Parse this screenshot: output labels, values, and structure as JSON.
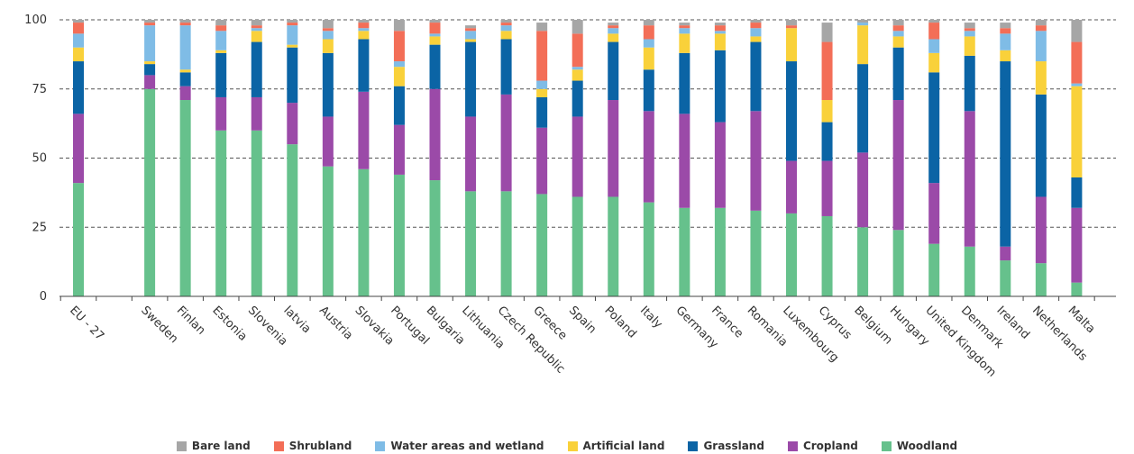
{
  "chart_data": {
    "type": "bar",
    "stacked": true,
    "ylim": [
      0,
      100
    ],
    "yticks": [
      0,
      25,
      50,
      75,
      100
    ],
    "grid": true,
    "legend_position": "bottom",
    "categories": [
      "EU - 27",
      "",
      "Sweden",
      "Finlan",
      "Estonia",
      "Slovenia",
      "latvia",
      "Austria",
      "Slovakia",
      "Portugal",
      "Bulgaria",
      "Lithuania",
      "Czech Republic",
      "Greece",
      "Spain",
      "Poland",
      "Italy",
      "Germany",
      "France",
      "Romania",
      "Luxembourg",
      "Cyprus",
      "Belgium",
      "Hungary",
      "United Kingdom",
      "Denmark",
      "Ireland",
      "Netherlands",
      "Malta"
    ],
    "series": [
      {
        "name": "Woodland",
        "color": "#66c18c",
        "values": [
          41,
          null,
          75,
          71,
          60,
          60,
          55,
          47,
          46,
          44,
          42,
          38,
          38,
          37,
          36,
          36,
          34,
          32,
          32,
          31,
          30,
          29,
          25,
          24,
          19,
          18,
          13,
          12,
          5
        ]
      },
      {
        "name": "Cropland",
        "color": "#9b4aa8",
        "values": [
          25,
          null,
          5,
          5,
          12,
          12,
          15,
          18,
          28,
          18,
          33,
          27,
          35,
          24,
          29,
          35,
          33,
          34,
          31,
          36,
          19,
          20,
          27,
          47,
          22,
          49,
          5,
          24,
          27
        ]
      },
      {
        "name": "Grassland",
        "color": "#0b64a5",
        "values": [
          19,
          null,
          4,
          5,
          16,
          20,
          20,
          23,
          19,
          14,
          16,
          27,
          20,
          11,
          13,
          21,
          15,
          22,
          26,
          25,
          36,
          14,
          32,
          19,
          40,
          20,
          67,
          37,
          11
        ]
      },
      {
        "name": "Artificial land",
        "color": "#f9d13a",
        "values": [
          5,
          null,
          1,
          1,
          1,
          4,
          1,
          5,
          3,
          7,
          3,
          1,
          3,
          3,
          4,
          3,
          8,
          7,
          6,
          2,
          12,
          8,
          14,
          4,
          7,
          7,
          4,
          12,
          33
        ]
      },
      {
        "name": "Water areas and wetland",
        "color": "#7fbce6",
        "values": [
          5,
          null,
          13,
          16,
          7,
          1,
          7,
          3,
          1,
          2,
          1,
          3,
          2,
          3,
          1,
          2,
          3,
          2,
          1,
          3,
          0,
          0,
          1,
          2,
          5,
          2,
          6,
          11,
          1
        ]
      },
      {
        "name": "Shrubland",
        "color": "#f36e57",
        "values": [
          4,
          null,
          1,
          1,
          2,
          1,
          1,
          1,
          2,
          11,
          4,
          1,
          1,
          18,
          12,
          1,
          5,
          1,
          2,
          2,
          1,
          21,
          0,
          2,
          6,
          1,
          2,
          2,
          15
        ]
      },
      {
        "name": "Bare land",
        "color": "#a6a6a6",
        "values": [
          1,
          null,
          1,
          1,
          2,
          2,
          1,
          3,
          1,
          4,
          1,
          1,
          1,
          3,
          5,
          1,
          2,
          1,
          1,
          1,
          2,
          7,
          1,
          2,
          1,
          2,
          2,
          2,
          8
        ]
      }
    ]
  },
  "legend_order": [
    "Bare land",
    "Shrubland",
    "Water areas and wetland",
    "Artificial land",
    "Grassland",
    "Cropland",
    "Woodland"
  ]
}
